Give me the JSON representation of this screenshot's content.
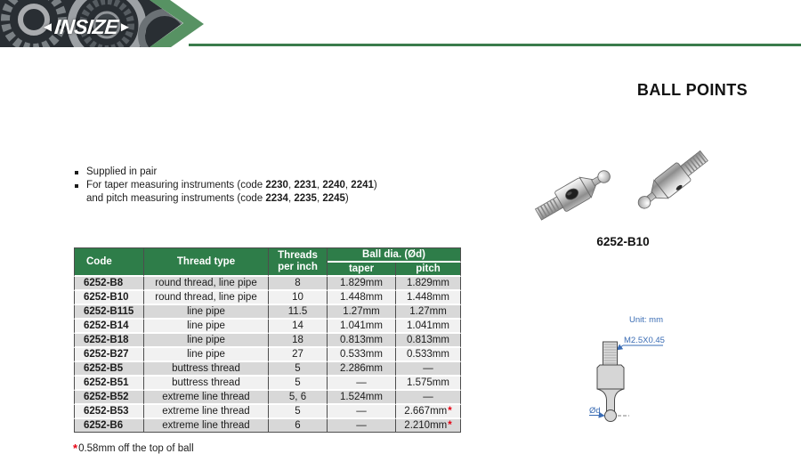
{
  "brand": {
    "wordmark": "INSIZE",
    "left_arrow": "◄",
    "right_arrow": "►"
  },
  "page": {
    "title": "BALL POINTS"
  },
  "bullets": [
    {
      "segments": [
        {
          "text": "Supplied in pair"
        }
      ]
    },
    {
      "segments": [
        {
          "text": "For taper measuring instruments (code "
        },
        {
          "text": "2230",
          "bold": true
        },
        {
          "text": ", "
        },
        {
          "text": "2231",
          "bold": true
        },
        {
          "text": ", "
        },
        {
          "text": "2240",
          "bold": true
        },
        {
          "text": ", "
        },
        {
          "text": "2241",
          "bold": true
        },
        {
          "text": ")"
        },
        {
          "break": true
        },
        {
          "text": "and pitch measuring instruments (code "
        },
        {
          "text": "2234",
          "bold": true
        },
        {
          "text": ", "
        },
        {
          "text": "2235",
          "bold": true
        },
        {
          "text": ", "
        },
        {
          "text": "2245",
          "bold": true
        },
        {
          "text": ")"
        }
      ]
    }
  ],
  "product": {
    "image_label": "6252-B10"
  },
  "drawing": {
    "unit": "Unit: mm",
    "thread_spec": "M2.5X0.45",
    "dia_label": "Ød"
  },
  "table": {
    "headers": {
      "code": "Code",
      "thread_type": "Thread type",
      "threads_per_inch": "Threads per inch",
      "ball_dia": "Ball dia. (Ød)",
      "taper": "taper",
      "pitch": "pitch"
    },
    "rows": [
      {
        "code": "6252-B8",
        "thread_type": "round thread, line pipe",
        "tpi": "8",
        "taper": "1.829mm",
        "pitch": "1.829mm"
      },
      {
        "code": "6252-B10",
        "thread_type": "round thread, line pipe",
        "tpi": "10",
        "taper": "1.448mm",
        "pitch": "1.448mm"
      },
      {
        "code": "6252-B115",
        "thread_type": "line pipe",
        "tpi": "11.5",
        "taper": "1.27mm",
        "pitch": "1.27mm"
      },
      {
        "code": "6252-B14",
        "thread_type": "line pipe",
        "tpi": "14",
        "taper": "1.041mm",
        "pitch": "1.041mm"
      },
      {
        "code": "6252-B18",
        "thread_type": "line pipe",
        "tpi": "18",
        "taper": "0.813mm",
        "pitch": "0.813mm"
      },
      {
        "code": "6252-B27",
        "thread_type": "line pipe",
        "tpi": "27",
        "taper": "0.533mm",
        "pitch": "0.533mm"
      },
      {
        "code": "6252-B5",
        "thread_type": "buttress thread",
        "tpi": "5",
        "taper": "2.286mm",
        "pitch": "—"
      },
      {
        "code": "6252-B51",
        "thread_type": "buttress thread",
        "tpi": "5",
        "taper": "—",
        "pitch": "1.575mm"
      },
      {
        "code": "6252-B52",
        "thread_type": "extreme line thread",
        "tpi": "5, 6",
        "taper": "1.524mm",
        "pitch": "—"
      },
      {
        "code": "6252-B53",
        "thread_type": "extreme line thread",
        "tpi": "5",
        "taper": "—",
        "pitch": "2.667mm",
        "pitch_star": true
      },
      {
        "code": "6252-B6",
        "thread_type": "extreme line thread",
        "tpi": "6",
        "taper": "—",
        "pitch": "2.210mm",
        "pitch_star": true
      }
    ]
  },
  "footnote": {
    "marker": "*",
    "text": "0.58mm off the top of ball"
  },
  "colors": {
    "table_header_green": "#2e7d49",
    "brand_chevron_green": "#579263",
    "rule_green": "#3a7c4c",
    "row_gray": "#d8d8d8",
    "row_light": "#f1f1f1",
    "asterisk_red": "#e60012",
    "drawing_blue": "#3a6cb4"
  }
}
